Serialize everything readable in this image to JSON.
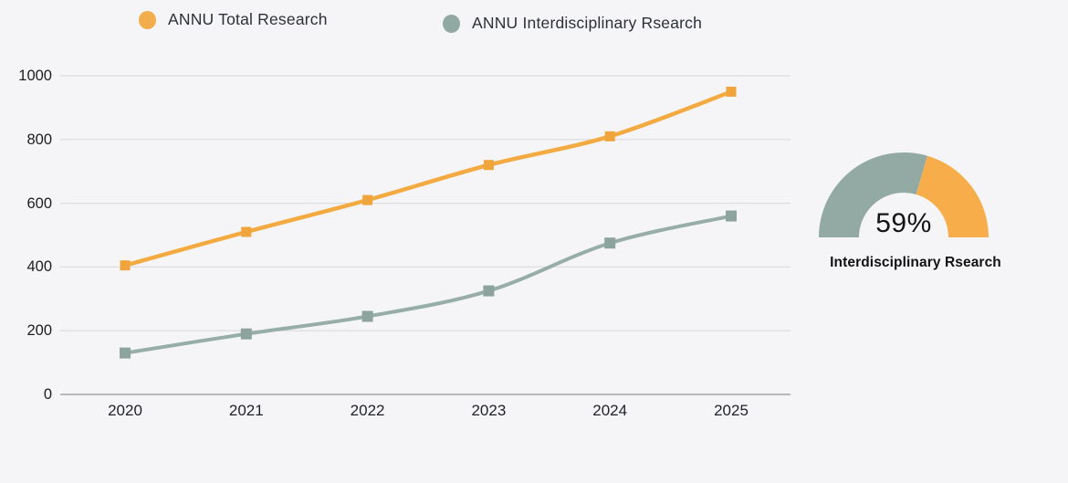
{
  "page": {
    "background": "#F5F5F7",
    "gridline_color": "#DEDEE0",
    "axis_color": "#A5A5A7"
  },
  "legend": {
    "items": [
      {
        "label": "ANNU Total Research",
        "color": "#F2AE4C"
      },
      {
        "label": "ANNU Interdisciplinary Rsearch",
        "color": "#92A8A3"
      }
    ]
  },
  "chart_data": {
    "type": "line",
    "x": [
      2020,
      2021,
      2022,
      2023,
      2024,
      2025
    ],
    "series": [
      {
        "name": "ANNU Total Research",
        "color": "#F3AA41",
        "marker_color": "#EFA53B",
        "marker": "square",
        "values": [
          405,
          510,
          610,
          720,
          810,
          950
        ]
      },
      {
        "name": "ANNU Interdisciplinary Rsearch",
        "color": "#97ADA7",
        "marker_color": "#8DA49E",
        "marker": "square",
        "values": [
          130,
          190,
          245,
          325,
          475,
          560
        ]
      }
    ],
    "title": "",
    "xlabel": "",
    "ylabel": "",
    "ylim": [
      0,
      1000
    ],
    "yticks": [
      0,
      200,
      400,
      600,
      800,
      1000
    ],
    "grid": true,
    "legend_position": "top"
  },
  "gauge": {
    "type": "semicircle-donut",
    "percent": 59,
    "value_label": "59%",
    "label": "Interdisciplinary Rsearch",
    "filled_color": "#93A9A3",
    "remainder_color": "#F7AE4A"
  }
}
